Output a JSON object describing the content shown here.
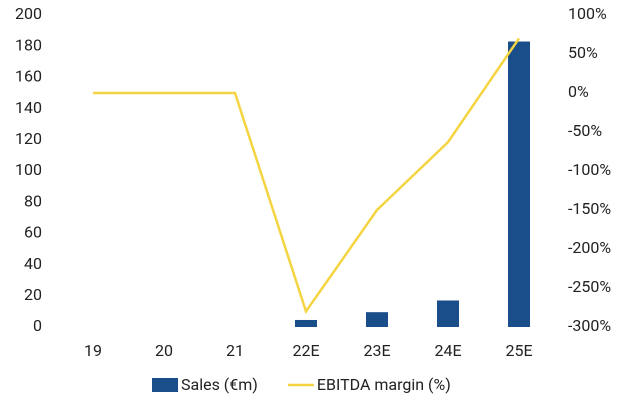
{
  "chart_data": {
    "type": "combo",
    "categories": [
      "19",
      "20",
      "21",
      "22E",
      "23E",
      "24E",
      "25E"
    ],
    "series": [
      {
        "name": "Sales (€m)",
        "type": "bar",
        "color": "#1a4e8a",
        "values": [
          0,
          0,
          0,
          4.5,
          9.5,
          17,
          183
        ]
      },
      {
        "name": "EBITDA margin (%)",
        "type": "line",
        "axis": "y2",
        "color": "#f5d442",
        "values": [
          0,
          0,
          0,
          -280,
          -150,
          -63,
          70
        ]
      }
    ],
    "ylim": [
      0,
      200
    ],
    "yticks": [
      0,
      20,
      40,
      60,
      80,
      100,
      120,
      140,
      160,
      180,
      200
    ],
    "y2lim": [
      -300,
      100
    ],
    "y2ticks": [
      {
        "value": -300,
        "label": "-300%"
      },
      {
        "value": -250,
        "label": "-250%"
      },
      {
        "value": -200,
        "label": "-200%"
      },
      {
        "value": -150,
        "label": "-150%"
      },
      {
        "value": -100,
        "label": "-100%"
      },
      {
        "value": -50,
        "label": "-50%"
      },
      {
        "value": 0,
        "label": "0%"
      },
      {
        "value": 50,
        "label": "50%"
      },
      {
        "value": 100,
        "label": "100%"
      }
    ],
    "grid": false
  }
}
